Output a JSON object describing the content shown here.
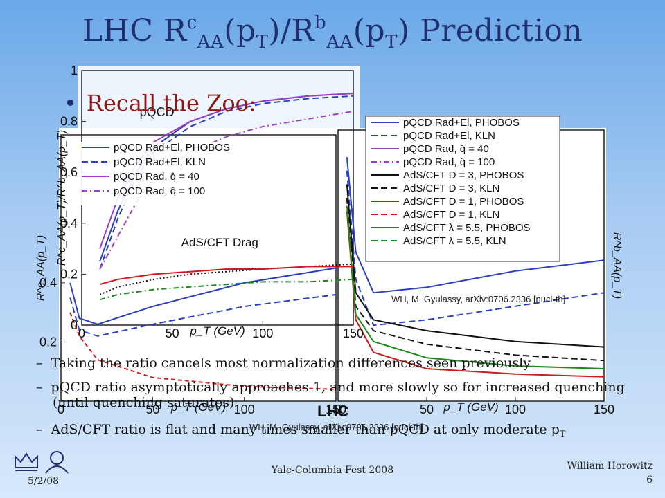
{
  "title": {
    "pre": "LHC R",
    "sup1": "c",
    "sub1": "AA",
    "mid1": "(p",
    "sub2": "T",
    "mid2": ")/R",
    "sup2": "b",
    "sub3": "AA",
    "mid3": "(p",
    "sub4": "T",
    "post": ") Prediction"
  },
  "bullet": "Recall the Zoo:",
  "sub_bullets": [
    "Taking the ratio cancels most normalization differences seen previously",
    "pQCD ratio asymptotically approaches 1, and more slowly so for increased quenching (until quenching saturates)",
    "AdS/CFT ratio is flat and many times smaller than pQCD at only moderate p",
    "T"
  ],
  "footer": {
    "date": "5/2/08",
    "event": "Yale-Columbia Fest 2008",
    "author": "William Horowitz",
    "page": "6"
  },
  "chart_data": [
    {
      "type": "line",
      "panel": "ratio R^c_AA/R^b_AA",
      "ylabel": "R^c_AA(p_T)/R^b_AA(p_T)",
      "xlabel": "p_T (GeV)",
      "xlim": [
        0,
        150
      ],
      "ylim": [
        0,
        1
      ],
      "x_ticks": [
        "0",
        "50",
        "100",
        "150"
      ],
      "y_ticks": [
        "0",
        "0.2",
        "0.4",
        "0.6",
        "0.8",
        "1"
      ],
      "labels": [
        "pQCD",
        "AdS/CFT Drag",
        "LHC"
      ],
      "citation": "WH, M. Gyulassy, arXiv:0706.2336 [nucl-th]",
      "legend": [
        "pQCD Rad+El, PHOBOS",
        "pQCD Rad+El, KLN",
        "pQCD Rad, q̂ = 40",
        "pQCD Rad, q̂ = 100"
      ],
      "series": [
        {
          "name": "pQCD Rad+El, PHOBOS",
          "x": [
            10,
            20,
            30,
            40,
            60,
            80,
            100,
            125,
            150
          ],
          "y": [
            0.25,
            0.45,
            0.6,
            0.7,
            0.8,
            0.85,
            0.88,
            0.9,
            0.91
          ]
        },
        {
          "name": "pQCD Rad+El, KLN",
          "x": [
            10,
            20,
            30,
            40,
            60,
            80,
            100,
            125,
            150
          ],
          "y": [
            0.22,
            0.42,
            0.58,
            0.68,
            0.78,
            0.84,
            0.87,
            0.89,
            0.9
          ]
        },
        {
          "name": "pQCD Rad, q̂ = 40",
          "x": [
            10,
            20,
            30,
            40,
            60,
            80,
            100,
            125,
            150
          ],
          "y": [
            0.3,
            0.5,
            0.63,
            0.72,
            0.8,
            0.85,
            0.88,
            0.9,
            0.91
          ]
        },
        {
          "name": "pQCD Rad, q̂ = 100",
          "x": [
            10,
            20,
            30,
            40,
            60,
            80,
            100,
            125,
            150
          ],
          "y": [
            0.22,
            0.35,
            0.48,
            0.58,
            0.68,
            0.74,
            0.78,
            0.81,
            0.84
          ]
        },
        {
          "name": "AdS/CFT D = 3",
          "x": [
            10,
            20,
            40,
            60,
            80,
            100,
            125,
            150
          ],
          "y": [
            0.12,
            0.15,
            0.18,
            0.2,
            0.21,
            0.22,
            0.23,
            0.24
          ]
        },
        {
          "name": "AdS/CFT D = 1",
          "x": [
            10,
            20,
            40,
            60,
            80,
            100,
            125,
            150
          ],
          "y": [
            0.16,
            0.18,
            0.2,
            0.21,
            0.22,
            0.22,
            0.23,
            0.23
          ]
        },
        {
          "name": "AdS/CFT λ = 5.5",
          "x": [
            10,
            20,
            40,
            60,
            80,
            100,
            125,
            150
          ],
          "y": [
            0.1,
            0.12,
            0.14,
            0.15,
            0.16,
            0.17,
            0.17,
            0.18
          ]
        }
      ]
    },
    {
      "type": "line",
      "panel": "R^c_AA (c quark)",
      "ylabel": "R^c_AA(p_T)",
      "xlabel": "p_T (GeV)",
      "xlim": [
        0,
        150
      ],
      "ylim": [
        0,
        0.9
      ],
      "x_ticks": [
        "0",
        "50",
        "100",
        "150"
      ],
      "y_ticks": [
        "0.2",
        "0.4"
      ],
      "series": [
        {
          "name": "pQCD Rad+El, PHOBOS",
          "x": [
            5,
            10,
            20,
            50,
            100,
            150
          ],
          "y": [
            0.4,
            0.28,
            0.26,
            0.32,
            0.4,
            0.45
          ]
        },
        {
          "name": "pQCD Rad+El, KLN",
          "x": [
            5,
            10,
            20,
            50,
            100,
            150
          ],
          "y": [
            0.35,
            0.24,
            0.22,
            0.26,
            0.32,
            0.36
          ]
        },
        {
          "name": "AdS/CFT",
          "x": [
            5,
            10,
            20,
            50,
            100,
            150
          ],
          "y": [
            0.3,
            0.22,
            0.14,
            0.08,
            0.05,
            0.04
          ]
        }
      ]
    },
    {
      "type": "line",
      "panel": "R^b_AA (b quark)",
      "ylabel": "R^b_AA(p_T)",
      "xlabel": "p_T (GeV)",
      "xlim": [
        0,
        150
      ],
      "ylim": [
        0,
        1
      ],
      "x_ticks": [
        "0",
        "50",
        "100",
        "150"
      ],
      "citation": "WH, M. Gyulassy, arXiv:0706.2336 [nucl-th]",
      "legend": [
        "pQCD Rad+El, PHOBOS",
        "pQCD Rad+El, KLN",
        "pQCD Rad, q̂ = 40",
        "pQCD Rad, q̂ = 100",
        "AdS/CFT D = 3, PHOBOS",
        "AdS/CFT D = 3, KLN",
        "AdS/CFT D = 1, PHOBOS",
        "AdS/CFT D = 1, KLN",
        "AdS/CFT λ = 5.5, PHOBOS",
        "AdS/CFT λ = 5.5, KLN"
      ],
      "series": [
        {
          "name": "pQCD Rad+El, PHOBOS",
          "x": [
            5,
            10,
            20,
            50,
            100,
            150
          ],
          "y": [
            0.9,
            0.55,
            0.4,
            0.42,
            0.48,
            0.52
          ]
        },
        {
          "name": "pQCD Rad+El, KLN",
          "x": [
            5,
            10,
            20,
            50,
            100,
            150
          ],
          "y": [
            0.85,
            0.45,
            0.28,
            0.3,
            0.35,
            0.4
          ]
        },
        {
          "name": "AdS/CFT D = 3, PHOBOS",
          "x": [
            5,
            10,
            20,
            50,
            100,
            150
          ],
          "y": [
            0.8,
            0.4,
            0.3,
            0.26,
            0.22,
            0.2
          ]
        },
        {
          "name": "AdS/CFT D = 3, KLN",
          "x": [
            5,
            10,
            20,
            50,
            100,
            150
          ],
          "y": [
            0.75,
            0.35,
            0.26,
            0.21,
            0.17,
            0.15
          ]
        },
        {
          "name": "AdS/CFT D = 1, PHOBOS",
          "x": [
            5,
            10,
            20,
            50,
            100,
            150
          ],
          "y": [
            0.7,
            0.3,
            0.18,
            0.12,
            0.1,
            0.09
          ]
        },
        {
          "name": "AdS/CFT λ = 5.5, PHOBOS",
          "x": [
            5,
            10,
            20,
            50,
            100,
            150
          ],
          "y": [
            0.72,
            0.32,
            0.22,
            0.16,
            0.13,
            0.12
          ]
        }
      ]
    }
  ]
}
